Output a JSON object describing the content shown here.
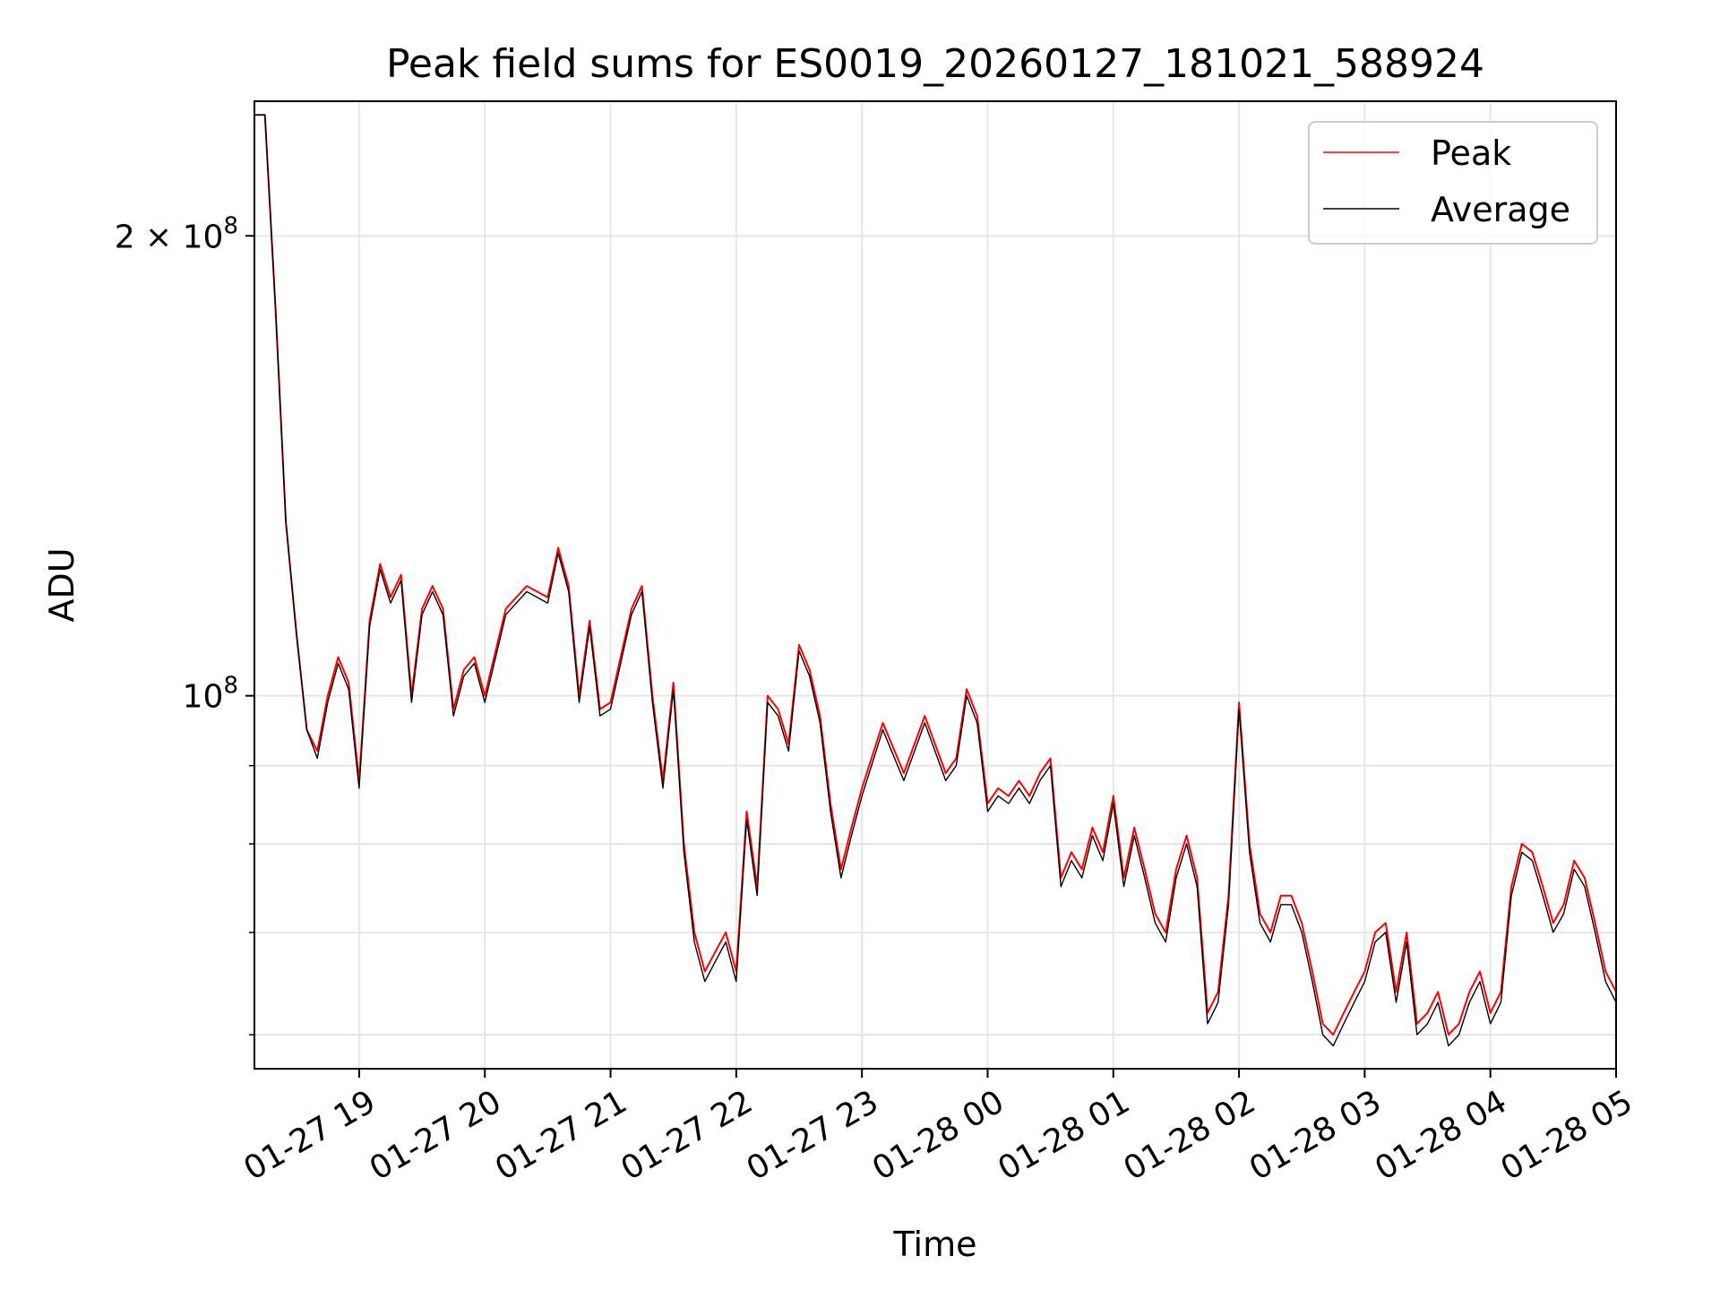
{
  "chart_data": {
    "type": "line",
    "title": "Peak field sums for ES0019_20260127_181021_588924",
    "xlabel": "Time",
    "ylabel": "ADU",
    "x_range": [
      "2026-01-27 18:10",
      "2026-01-28 05:00"
    ],
    "ylim": [
      57000000,
      245000000
    ],
    "yscale": "log",
    "grid": true,
    "legend_position": "top-right",
    "x_tick_labels": [
      "01-27 19",
      "01-27 20",
      "01-27 21",
      "01-27 22",
      "01-27 23",
      "01-28 00",
      "01-28 01",
      "01-28 02",
      "01-28 03",
      "01-28 04",
      "01-28 05"
    ],
    "x_tick_values": [
      "2026-01-27 19:00",
      "2026-01-27 20:00",
      "2026-01-27 21:00",
      "2026-01-27 22:00",
      "2026-01-27 23:00",
      "2026-01-28 00:00",
      "2026-01-28 01:00",
      "2026-01-28 02:00",
      "2026-01-28 03:00",
      "2026-01-28 04:00",
      "2026-01-28 05:00"
    ],
    "y_major_ticks": [
      {
        "value": 100000000,
        "base": "10",
        "exp": "8",
        "mantissa": ""
      },
      {
        "value": 200000000,
        "base": "10",
        "exp": "8",
        "mantissa": "2 × "
      }
    ],
    "y_minor_ticks": [
      60000000,
      70000000,
      80000000,
      90000000
    ],
    "colors": {
      "peak": "#ff0000",
      "average": "#000000"
    },
    "series": [
      {
        "name": "Peak",
        "color": "#ff0000",
        "x": [
          "2026-01-27 18:10",
          "2026-01-27 18:15",
          "2026-01-27 18:20",
          "2026-01-27 18:25",
          "2026-01-27 18:30",
          "2026-01-27 18:35",
          "2026-01-27 18:40",
          "2026-01-27 18:45",
          "2026-01-27 18:50",
          "2026-01-27 18:55",
          "2026-01-27 19:00",
          "2026-01-27 19:05",
          "2026-01-27 19:10",
          "2026-01-27 19:15",
          "2026-01-27 19:20",
          "2026-01-27 19:25",
          "2026-01-27 19:30",
          "2026-01-27 19:35",
          "2026-01-27 19:40",
          "2026-01-27 19:45",
          "2026-01-27 19:50",
          "2026-01-27 19:55",
          "2026-01-27 20:00",
          "2026-01-27 20:10",
          "2026-01-27 20:20",
          "2026-01-27 20:30",
          "2026-01-27 20:35",
          "2026-01-27 20:40",
          "2026-01-27 20:45",
          "2026-01-27 20:50",
          "2026-01-27 20:55",
          "2026-01-27 21:00",
          "2026-01-27 21:10",
          "2026-01-27 21:15",
          "2026-01-27 21:20",
          "2026-01-27 21:25",
          "2026-01-27 21:30",
          "2026-01-27 21:35",
          "2026-01-27 21:40",
          "2026-01-27 21:45",
          "2026-01-27 21:50",
          "2026-01-27 21:55",
          "2026-01-27 22:00",
          "2026-01-27 22:05",
          "2026-01-27 22:10",
          "2026-01-27 22:15",
          "2026-01-27 22:20",
          "2026-01-27 22:25",
          "2026-01-27 22:30",
          "2026-01-27 22:35",
          "2026-01-27 22:40",
          "2026-01-27 22:45",
          "2026-01-27 22:50",
          "2026-01-27 22:55",
          "2026-01-27 23:00",
          "2026-01-27 23:10",
          "2026-01-27 23:20",
          "2026-01-27 23:30",
          "2026-01-27 23:40",
          "2026-01-27 23:45",
          "2026-01-27 23:50",
          "2026-01-27 23:55",
          "2026-01-28 00:00",
          "2026-01-28 00:05",
          "2026-01-28 00:10",
          "2026-01-28 00:15",
          "2026-01-28 00:20",
          "2026-01-28 00:25",
          "2026-01-28 00:30",
          "2026-01-28 00:35",
          "2026-01-28 00:40",
          "2026-01-28 00:45",
          "2026-01-28 00:50",
          "2026-01-28 00:55",
          "2026-01-28 01:00",
          "2026-01-28 01:05",
          "2026-01-28 01:10",
          "2026-01-28 01:15",
          "2026-01-28 01:20",
          "2026-01-28 01:25",
          "2026-01-28 01:30",
          "2026-01-28 01:35",
          "2026-01-28 01:40",
          "2026-01-28 01:45",
          "2026-01-28 01:50",
          "2026-01-28 01:55",
          "2026-01-28 02:00",
          "2026-01-28 02:05",
          "2026-01-28 02:10",
          "2026-01-28 02:15",
          "2026-01-28 02:20",
          "2026-01-28 02:25",
          "2026-01-28 02:30",
          "2026-01-28 02:35",
          "2026-01-28 02:40",
          "2026-01-28 02:45",
          "2026-01-28 02:50",
          "2026-01-28 02:55",
          "2026-01-28 03:00",
          "2026-01-28 03:05",
          "2026-01-28 03:10",
          "2026-01-28 03:15",
          "2026-01-28 03:20",
          "2026-01-28 03:25",
          "2026-01-28 03:30",
          "2026-01-28 03:35",
          "2026-01-28 03:40",
          "2026-01-28 03:45",
          "2026-01-28 03:50",
          "2026-01-28 03:55",
          "2026-01-28 04:00",
          "2026-01-28 04:05",
          "2026-01-28 04:10",
          "2026-01-28 04:15",
          "2026-01-28 04:20",
          "2026-01-28 04:25",
          "2026-01-28 04:30",
          "2026-01-28 04:35",
          "2026-01-28 04:40",
          "2026-01-28 04:45",
          "2026-01-28 04:50",
          "2026-01-28 04:55",
          "2026-01-28 05:00"
        ],
        "values": [
          240000000,
          240000000,
          180000000,
          130000000,
          110000000,
          95000000,
          92000000,
          100000000,
          106000000,
          102000000,
          88000000,
          112000000,
          122000000,
          116000000,
          120000000,
          100000000,
          114000000,
          118000000,
          114000000,
          98000000,
          104000000,
          106000000,
          100000000,
          114000000,
          118000000,
          116000000,
          125000000,
          118000000,
          100000000,
          112000000,
          98000000,
          99000000,
          114000000,
          118000000,
          100000000,
          88000000,
          102000000,
          80000000,
          70000000,
          66000000,
          68000000,
          70000000,
          66000000,
          84000000,
          75000000,
          100000000,
          98000000,
          93000000,
          108000000,
          104000000,
          97000000,
          85000000,
          77000000,
          82000000,
          87000000,
          96000000,
          89000000,
          97000000,
          89000000,
          91000000,
          101000000,
          97000000,
          85000000,
          87000000,
          86000000,
          88000000,
          86000000,
          89000000,
          91000000,
          76000000,
          79000000,
          77000000,
          82000000,
          79000000,
          86000000,
          76000000,
          82000000,
          77000000,
          72000000,
          70000000,
          77000000,
          81000000,
          76000000,
          62000000,
          64000000,
          74000000,
          99000000,
          80000000,
          72000000,
          70000000,
          74000000,
          74000000,
          71000000,
          66000000,
          61000000,
          60000000,
          62000000,
          64000000,
          66000000,
          70000000,
          71000000,
          64000000,
          70000000,
          61000000,
          62000000,
          64000000,
          60000000,
          61000000,
          64000000,
          66000000,
          62000000,
          64000000,
          75000000,
          80000000,
          79000000,
          75000000,
          71000000,
          73000000,
          78000000,
          76000000,
          71000000,
          66000000,
          64000000
        ]
      },
      {
        "name": "Average",
        "color": "#000000",
        "x": [
          "2026-01-27 18:10",
          "2026-01-27 18:15",
          "2026-01-27 18:20",
          "2026-01-27 18:25",
          "2026-01-27 18:30",
          "2026-01-27 18:35",
          "2026-01-27 18:40",
          "2026-01-27 18:45",
          "2026-01-27 18:50",
          "2026-01-27 18:55",
          "2026-01-27 19:00",
          "2026-01-27 19:05",
          "2026-01-27 19:10",
          "2026-01-27 19:15",
          "2026-01-27 19:20",
          "2026-01-27 19:25",
          "2026-01-27 19:30",
          "2026-01-27 19:35",
          "2026-01-27 19:40",
          "2026-01-27 19:45",
          "2026-01-27 19:50",
          "2026-01-27 19:55",
          "2026-01-27 20:00",
          "2026-01-27 20:10",
          "2026-01-27 20:20",
          "2026-01-27 20:30",
          "2026-01-27 20:35",
          "2026-01-27 20:40",
          "2026-01-27 20:45",
          "2026-01-27 20:50",
          "2026-01-27 20:55",
          "2026-01-27 21:00",
          "2026-01-27 21:10",
          "2026-01-27 21:15",
          "2026-01-27 21:20",
          "2026-01-27 21:25",
          "2026-01-27 21:30",
          "2026-01-27 21:35",
          "2026-01-27 21:40",
          "2026-01-27 21:45",
          "2026-01-27 21:50",
          "2026-01-27 21:55",
          "2026-01-27 22:00",
          "2026-01-27 22:05",
          "2026-01-27 22:10",
          "2026-01-27 22:15",
          "2026-01-27 22:20",
          "2026-01-27 22:25",
          "2026-01-27 22:30",
          "2026-01-27 22:35",
          "2026-01-27 22:40",
          "2026-01-27 22:45",
          "2026-01-27 22:50",
          "2026-01-27 22:55",
          "2026-01-27 23:00",
          "2026-01-27 23:10",
          "2026-01-27 23:20",
          "2026-01-27 23:30",
          "2026-01-27 23:40",
          "2026-01-27 23:45",
          "2026-01-27 23:50",
          "2026-01-27 23:55",
          "2026-01-28 00:00",
          "2026-01-28 00:05",
          "2026-01-28 00:10",
          "2026-01-28 00:15",
          "2026-01-28 00:20",
          "2026-01-28 00:25",
          "2026-01-28 00:30",
          "2026-01-28 00:35",
          "2026-01-28 00:40",
          "2026-01-28 00:45",
          "2026-01-28 00:50",
          "2026-01-28 00:55",
          "2026-01-28 01:00",
          "2026-01-28 01:05",
          "2026-01-28 01:10",
          "2026-01-28 01:15",
          "2026-01-28 01:20",
          "2026-01-28 01:25",
          "2026-01-28 01:30",
          "2026-01-28 01:35",
          "2026-01-28 01:40",
          "2026-01-28 01:45",
          "2026-01-28 01:50",
          "2026-01-28 01:55",
          "2026-01-28 02:00",
          "2026-01-28 02:05",
          "2026-01-28 02:10",
          "2026-01-28 02:15",
          "2026-01-28 02:20",
          "2026-01-28 02:25",
          "2026-01-28 02:30",
          "2026-01-28 02:35",
          "2026-01-28 02:40",
          "2026-01-28 02:45",
          "2026-01-28 02:50",
          "2026-01-28 02:55",
          "2026-01-28 03:00",
          "2026-01-28 03:05",
          "2026-01-28 03:10",
          "2026-01-28 03:15",
          "2026-01-28 03:20",
          "2026-01-28 03:25",
          "2026-01-28 03:30",
          "2026-01-28 03:35",
          "2026-01-28 03:40",
          "2026-01-28 03:45",
          "2026-01-28 03:50",
          "2026-01-28 03:55",
          "2026-01-28 04:00",
          "2026-01-28 04:05",
          "2026-01-28 04:10",
          "2026-01-28 04:15",
          "2026-01-28 04:20",
          "2026-01-28 04:25",
          "2026-01-28 04:30",
          "2026-01-28 04:35",
          "2026-01-28 04:40",
          "2026-01-28 04:45",
          "2026-01-28 04:50",
          "2026-01-28 04:55",
          "2026-01-28 05:00"
        ],
        "values": [
          240000000,
          240000000,
          180000000,
          130000000,
          110000000,
          95000000,
          91000000,
          99000000,
          105000000,
          101000000,
          87000000,
          111000000,
          121000000,
          115000000,
          119000000,
          99000000,
          113000000,
          117000000,
          113000000,
          97000000,
          103000000,
          105000000,
          99000000,
          113000000,
          117000000,
          115000000,
          124000000,
          117000000,
          99000000,
          111000000,
          97000000,
          98000000,
          113000000,
          117000000,
          99000000,
          87000000,
          101000000,
          79000000,
          69000000,
          65000000,
          67000000,
          69000000,
          65000000,
          83000000,
          74000000,
          99000000,
          97000000,
          92000000,
          107000000,
          103000000,
          96000000,
          84000000,
          76000000,
          81000000,
          86000000,
          95000000,
          88000000,
          96000000,
          88000000,
          90000000,
          100000000,
          96000000,
          84000000,
          86000000,
          85000000,
          87000000,
          85000000,
          88000000,
          90000000,
          75000000,
          78000000,
          76000000,
          81000000,
          78000000,
          85000000,
          75000000,
          81000000,
          76000000,
          71000000,
          69000000,
          76000000,
          80000000,
          75000000,
          61000000,
          63000000,
          73000000,
          98000000,
          79000000,
          71000000,
          69000000,
          73000000,
          73000000,
          70000000,
          65000000,
          60000000,
          59000000,
          61000000,
          63000000,
          65000000,
          69000000,
          70000000,
          63000000,
          69000000,
          60000000,
          61000000,
          63000000,
          59000000,
          60000000,
          63000000,
          65000000,
          61000000,
          63000000,
          74000000,
          79000000,
          78000000,
          74000000,
          70000000,
          72000000,
          77000000,
          75000000,
          70000000,
          65000000,
          63000000
        ]
      }
    ]
  }
}
